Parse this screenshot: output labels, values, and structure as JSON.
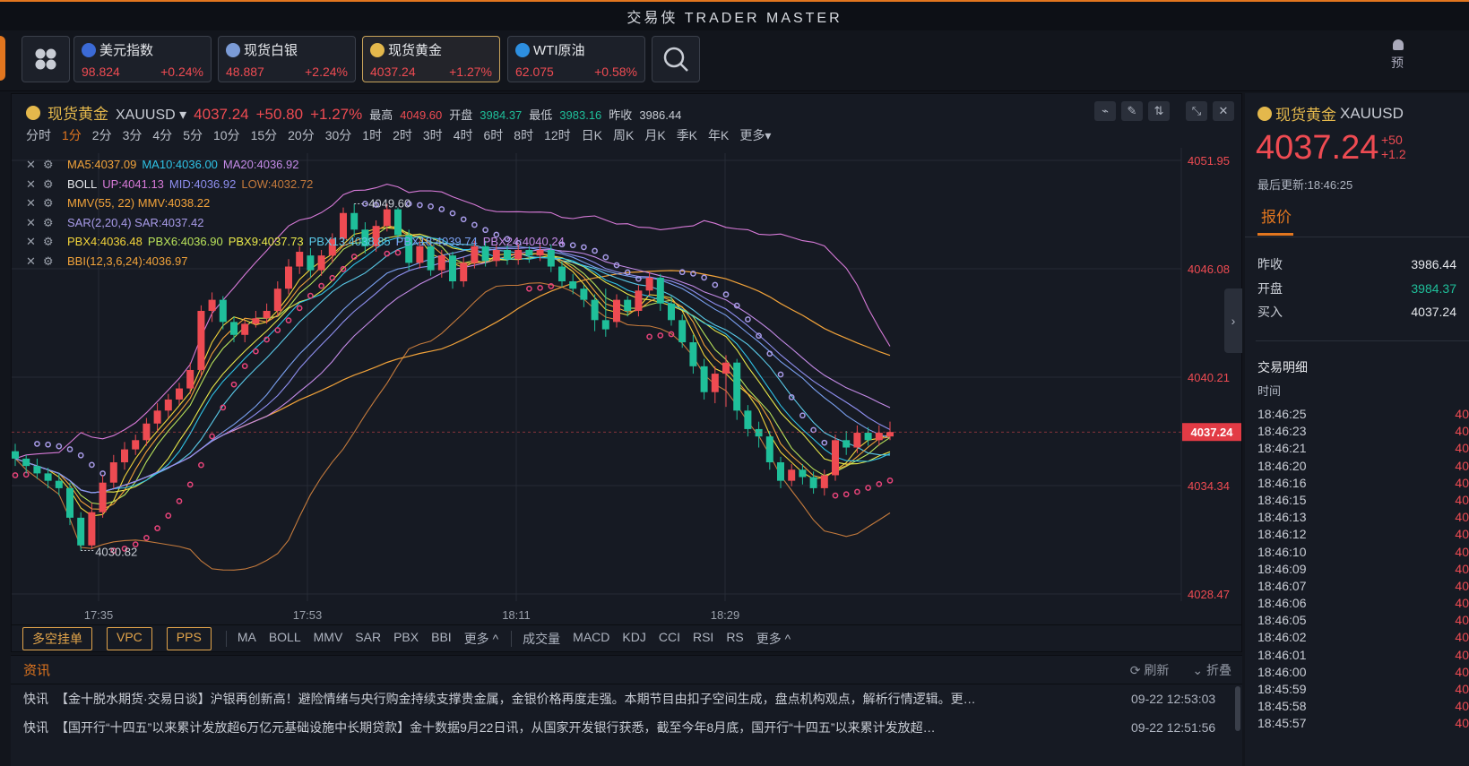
{
  "app": {
    "title": "交易侠 TRADER MASTER"
  },
  "tickers": [
    {
      "name": "美元指数",
      "price": "98.824",
      "change": "+0.24%",
      "flag_color": "#3b6ad6",
      "active": false
    },
    {
      "name": "现货白银",
      "price": "48.887",
      "change": "+2.24%",
      "flag_color": "#7b9bd6",
      "active": false
    },
    {
      "name": "现货黄金",
      "price": "4037.24",
      "change": "+1.27%",
      "flag_color": "#e4b84c",
      "active": true
    },
    {
      "name": "WTI原油",
      "price": "62.075",
      "change": "+0.58%",
      "flag_color": "#2d8fe0",
      "active": false
    }
  ],
  "top_right_label": "预",
  "symbol": {
    "name": "现货黄金",
    "code": "XAUUSD",
    "price": "4037.24",
    "change": "+50.80",
    "change_pct": "+1.27%",
    "high_label": "最高",
    "high": "4049.60",
    "open_label": "开盘",
    "open": "3984.37",
    "low_label": "最低",
    "low": "3983.16",
    "prev_label": "昨收",
    "prev": "3986.44"
  },
  "timeframes": [
    "分时",
    "1分",
    "2分",
    "3分",
    "4分",
    "5分",
    "10分",
    "15分",
    "20分",
    "30分",
    "1时",
    "2时",
    "3时",
    "4时",
    "6时",
    "8时",
    "12时",
    "日K",
    "周K",
    "月K",
    "季K",
    "年K",
    "更多▾"
  ],
  "active_timeframe": "1分",
  "indicators": [
    {
      "parts": [
        {
          "t": "MA5:4037.09",
          "c": "#f2a33a"
        },
        {
          "t": "MA10:4036.00",
          "c": "#2fc3e6"
        },
        {
          "t": "MA20:4036.92",
          "c": "#c58be8"
        }
      ]
    },
    {
      "parts": [
        {
          "t": "BOLL",
          "c": "#e6e8ec"
        },
        {
          "t": "UP:4041.13",
          "c": "#d77ad8"
        },
        {
          "t": "MID:4036.92",
          "c": "#8f8ff0"
        },
        {
          "t": "LOW:4032.72",
          "c": "#c47a3c"
        }
      ]
    },
    {
      "parts": [
        {
          "t": "MMV(55, 22) MMV:4038.22",
          "c": "#f2a33a"
        }
      ]
    },
    {
      "parts": [
        {
          "t": "SAR(2,20,4) SAR:4037.42",
          "c": "#a89be8"
        }
      ]
    },
    {
      "parts": [
        {
          "t": "PBX4:4036.48",
          "c": "#f2d43a"
        },
        {
          "t": "PBX6:4036.90",
          "c": "#b9e35a"
        },
        {
          "t": "PBX9:4037.73",
          "c": "#e8e84a"
        },
        {
          "t": "PBX13:4038.85",
          "c": "#5ac9e8"
        },
        {
          "t": "PBX18:4039.74",
          "c": "#7aa0f0"
        },
        {
          "t": "PBX24:4040.24",
          "c": "#c58be8"
        }
      ]
    },
    {
      "parts": [
        {
          "t": "BBI(12,3,6,24):4036.97",
          "c": "#f2a33a"
        }
      ]
    }
  ],
  "y_labels": [
    "4051.95",
    "4046.08",
    "4040.21",
    "4034.34",
    "4028.47"
  ],
  "current_price_tag": "4037.24",
  "x_labels": [
    "17:35",
    "17:53",
    "18:11",
    "18:29"
  ],
  "annotations": {
    "high": "4049.60",
    "low": "4030.82"
  },
  "bottom": {
    "order_buttons": [
      "多空挂单",
      "VPC",
      "PPS"
    ],
    "main_indicators": [
      "MA",
      "BOLL",
      "MMV",
      "SAR",
      "PBX",
      "BBI",
      "更多 ^"
    ],
    "sub_indicators": [
      "成交量",
      "MACD",
      "KDJ",
      "CCI",
      "RSI",
      "RS",
      "更多 ^"
    ]
  },
  "news": {
    "title": "资讯",
    "refresh": "刷新",
    "collapse": "折叠",
    "items": [
      {
        "kind": "快讯",
        "text": "【金十脱水期货·交易日谈】沪银再创新高！避险情绪与央行购金持续支撑贵金属，金银价格再度走强。本期节目由扣子空间生成，盘点机构观点，解析行情逻辑。更…",
        "time": "09-22 12:53:03"
      },
      {
        "kind": "快讯",
        "text": "【国开行“十四五”以来累计发放超6万亿元基础设施中长期贷款】金十数据9月22日讯，从国家开发银行获悉，截至今年8月底，国开行“十四五”以来累计发放超…",
        "time": "09-22 12:51:56"
      }
    ]
  },
  "right": {
    "name": "现货黄金",
    "code": "XAUUSD",
    "price": "4037.24",
    "chg1": "+50",
    "chg2": "+1.2",
    "updated": "最后更新:18:46:25",
    "tab": "报价",
    "quote": [
      {
        "k": "昨收",
        "v": "3986.44",
        "green": false
      },
      {
        "k": "开盘",
        "v": "3984.37",
        "green": true
      },
      {
        "k": "买入",
        "v": "4037.24",
        "green": false
      }
    ],
    "trade_title": "交易明细",
    "trade_header": "时间",
    "trades": [
      "18:46:25",
      "18:46:23",
      "18:46:21",
      "18:46:20",
      "18:46:16",
      "18:46:15",
      "18:46:13",
      "18:46:12",
      "18:46:10",
      "18:46:09",
      "18:46:07",
      "18:46:06",
      "18:46:05",
      "18:46:02",
      "18:46:01",
      "18:46:00",
      "18:45:59",
      "18:45:58",
      "18:45:57"
    ],
    "trade_price_prefix": "40"
  },
  "colors": {
    "up": "#ee4b52",
    "down": "#1fbf9a",
    "accent": "#e2761f",
    "gold": "#e4b84c"
  },
  "chart_data": {
    "type": "candlestick",
    "ylim": [
      4028.47,
      4051.95
    ],
    "y_ticks": [
      4051.95,
      4046.08,
      4040.21,
      4034.34,
      4028.47
    ],
    "x_ticks": [
      "17:35",
      "17:53",
      "18:11",
      "18:29"
    ],
    "candles": [
      [
        4036.2,
        4035.8,
        4036.6,
        4035.4
      ],
      [
        4035.8,
        4035.4,
        4036.0,
        4035.0
      ],
      [
        4035.4,
        4035.0,
        4035.8,
        4034.7
      ],
      [
        4035.0,
        4034.6,
        4035.3,
        4034.2
      ],
      [
        4034.6,
        4034.2,
        4035.0,
        4033.8
      ],
      [
        4034.2,
        4032.6,
        4034.5,
        4032.2
      ],
      [
        4032.6,
        4031.1,
        4032.9,
        4030.82
      ],
      [
        4031.1,
        4032.9,
        4033.4,
        4030.9
      ],
      [
        4032.9,
        4034.5,
        4034.9,
        4032.6
      ],
      [
        4034.5,
        4035.6,
        4036.0,
        4034.2
      ],
      [
        4035.6,
        4036.3,
        4036.7,
        4035.2
      ],
      [
        4036.3,
        4036.8,
        4037.1,
        4036.0
      ],
      [
        4036.8,
        4037.7,
        4038.0,
        4036.5
      ],
      [
        4037.7,
        4038.4,
        4038.8,
        4037.3
      ],
      [
        4038.4,
        4039.0,
        4039.3,
        4038.0
      ],
      [
        4039.0,
        4039.6,
        4039.9,
        4038.7
      ],
      [
        4039.6,
        4040.6,
        4041.0,
        4039.3
      ],
      [
        4040.6,
        4043.8,
        4044.1,
        4040.3
      ],
      [
        4043.8,
        4044.4,
        4044.8,
        4043.2
      ],
      [
        4044.4,
        4043.2,
        4044.6,
        4042.8
      ],
      [
        4043.2,
        4042.5,
        4043.5,
        4042.1
      ],
      [
        4042.5,
        4043.1,
        4043.3,
        4042.1
      ],
      [
        4043.1,
        4043.4,
        4043.8,
        4042.9
      ],
      [
        4043.4,
        4043.8,
        4044.2,
        4043.1
      ],
      [
        4043.8,
        4045.0,
        4045.4,
        4043.5
      ],
      [
        4045.0,
        4046.2,
        4046.6,
        4044.7
      ],
      [
        4046.2,
        4047.0,
        4047.3,
        4045.8
      ],
      [
        4046.8,
        4046.0,
        4047.2,
        4045.6
      ],
      [
        4046.0,
        4046.8,
        4047.1,
        4045.7
      ],
      [
        4046.8,
        4047.7,
        4048.0,
        4046.4
      ],
      [
        4047.7,
        4049.1,
        4049.4,
        4047.3
      ],
      [
        4049.1,
        4048.2,
        4049.6,
        4047.8
      ],
      [
        4048.2,
        4047.3,
        4048.6,
        4046.9
      ],
      [
        4047.3,
        4048.4,
        4048.7,
        4047.0
      ],
      [
        4048.4,
        4049.3,
        4049.6,
        4048.1
      ],
      [
        4049.3,
        4047.9,
        4049.4,
        4047.5
      ],
      [
        4047.9,
        4046.4,
        4048.2,
        4046.0
      ],
      [
        4046.4,
        4047.3,
        4047.6,
        4046.1
      ],
      [
        4047.3,
        4046.0,
        4047.6,
        4045.7
      ],
      [
        4046.0,
        4046.8,
        4047.1,
        4045.6
      ],
      [
        4046.8,
        4045.4,
        4047.0,
        4045.0
      ],
      [
        4045.4,
        4046.4,
        4046.7,
        4045.1
      ],
      [
        4046.4,
        4047.3,
        4047.6,
        4046.1
      ],
      [
        4047.3,
        4046.5,
        4047.6,
        4046.2
      ],
      [
        4046.5,
        4047.1,
        4047.4,
        4046.2
      ],
      [
        4047.1,
        4046.6,
        4047.4,
        4046.3
      ],
      [
        4046.6,
        4047.1,
        4047.4,
        4046.3
      ],
      [
        4047.1,
        4046.8,
        4047.3,
        4046.4
      ],
      [
        4046.8,
        4047.1,
        4047.4,
        4046.5
      ],
      [
        4047.1,
        4046.2,
        4047.4,
        4045.9
      ],
      [
        4046.2,
        4045.4,
        4046.5,
        4045.1
      ],
      [
        4045.4,
        4045.0,
        4045.8,
        4044.7
      ],
      [
        4045.0,
        4044.4,
        4045.2,
        4044.0
      ],
      [
        4044.4,
        4043.3,
        4044.7,
        4042.7
      ],
      [
        4043.3,
        4042.8,
        4045.0,
        4042.4
      ],
      [
        4043.2,
        4044.4,
        4044.7,
        4042.9
      ],
      [
        4044.4,
        4043.8,
        4044.6,
        4043.5
      ],
      [
        4043.8,
        4044.9,
        4045.2,
        4043.5
      ],
      [
        4044.9,
        4045.6,
        4045.9,
        4044.6
      ],
      [
        4045.6,
        4044.2,
        4045.8,
        4043.8
      ],
      [
        4044.2,
        4043.3,
        4044.6,
        4043.0
      ],
      [
        4043.3,
        4042.1,
        4043.6,
        4041.8
      ],
      [
        4042.1,
        4040.8,
        4042.5,
        4040.4
      ],
      [
        4040.8,
        4039.4,
        4041.2,
        4039.0
      ],
      [
        4039.4,
        4040.4,
        4040.8,
        4038.8
      ],
      [
        4040.4,
        4041.0,
        4041.4,
        4038.6
      ],
      [
        4041.0,
        4038.4,
        4041.2,
        4037.9
      ],
      [
        4038.4,
        4037.4,
        4038.7,
        4037.0
      ],
      [
        4037.4,
        4037.0,
        4037.8,
        4036.4
      ],
      [
        4037.0,
        4035.6,
        4037.3,
        4035.2
      ],
      [
        4035.6,
        4034.6,
        4035.9,
        4034.2
      ],
      [
        4034.6,
        4035.2,
        4035.5,
        4034.3
      ],
      [
        4035.2,
        4034.8,
        4035.5,
        4034.4
      ],
      [
        4034.8,
        4034.2,
        4035.1,
        4033.9
      ],
      [
        4034.2,
        4034.9,
        4035.2,
        4033.8
      ],
      [
        4034.9,
        4036.8,
        4037.1,
        4034.6
      ],
      [
        4036.8,
        4036.4,
        4037.3,
        4036.0
      ],
      [
        4036.4,
        4037.2,
        4037.6,
        4036.1
      ],
      [
        4037.2,
        4036.8,
        4037.5,
        4036.5
      ],
      [
        4036.8,
        4037.2,
        4037.6,
        4036.5
      ],
      [
        4037.0,
        4037.24,
        4037.8,
        4036.8
      ]
    ]
  }
}
